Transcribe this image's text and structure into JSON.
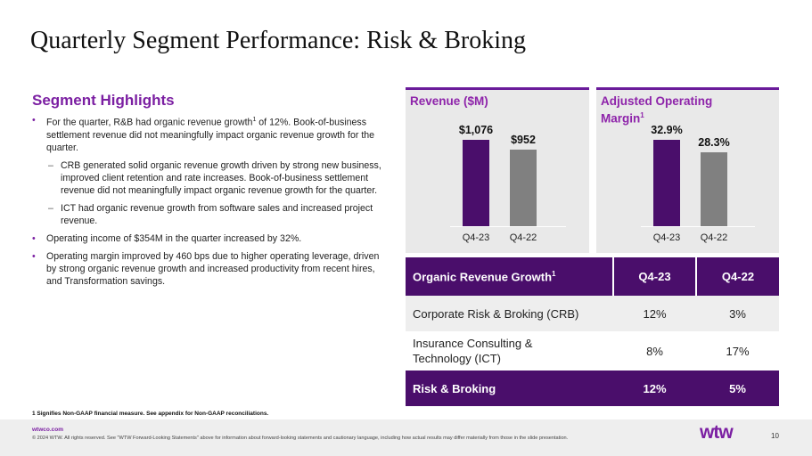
{
  "title": "Quarterly Segment Performance: Risk & Broking",
  "highlights": {
    "heading": "Segment Highlights",
    "bullet1": "For the quarter, R&B had organic revenue growth",
    "bullet1_sup": "1",
    "bullet1_rest": " of 12%. Book-of-business settlement revenue did not meaningfully impact organic revenue growth for the quarter.",
    "sub1": "CRB generated solid organic revenue growth driven by strong new business, improved client retention and rate increases. Book-of-business settlement revenue did not meaningfully impact organic revenue growth for the quarter.",
    "sub2": "ICT had organic revenue growth from software sales and increased project revenue.",
    "bullet2": "Operating income of $354M in the quarter increased by 32%.",
    "bullet3": "Operating margin improved by 460 bps due to higher operating leverage, driven by strong organic revenue growth and increased productivity from recent hires, and Transformation savings."
  },
  "chart_data": [
    {
      "type": "bar",
      "title": "Revenue ($M)",
      "categories": [
        "Q4-23",
        "Q4-22"
      ],
      "values": [
        1076,
        952
      ],
      "value_labels": [
        "$1,076",
        "$952"
      ],
      "colors": [
        "#4a0e6b",
        "#808080"
      ],
      "ylim": [
        0,
        1076
      ]
    },
    {
      "type": "bar",
      "title": "Adjusted Operating Margin",
      "title_line1": "Adjusted Operating",
      "title_line2": "Margin",
      "title_sup": "1",
      "categories": [
        "Q4-23",
        "Q4-22"
      ],
      "values": [
        32.9,
        28.3
      ],
      "value_labels": [
        "32.9%",
        "28.3%"
      ],
      "colors": [
        "#4a0e6b",
        "#808080"
      ],
      "ylim": [
        0,
        32.9
      ]
    }
  ],
  "table": {
    "header": {
      "label": "Organic Revenue Growth",
      "sup": "1",
      "col1": "Q4-23",
      "col2": "Q4-22"
    },
    "rows": [
      {
        "label": "Corporate Risk & Broking (CRB)",
        "q423": "12%",
        "q422": "3%"
      },
      {
        "label_line1": "Insurance Consulting &",
        "label_line2": "Technology (ICT)",
        "q423": "8%",
        "q422": "17%"
      }
    ],
    "total": {
      "label": "Risk & Broking",
      "q423": "12%",
      "q422": "5%"
    }
  },
  "footnote": "1 Signifies Non-GAAP financial measure. See appendix for Non-GAAP reconciliations.",
  "footer": {
    "site": "wtwco.com",
    "legal": "© 2024 WTW. All rights reserved. See \"WTW Forward-Looking Statements\" above for information about forward-looking statements and cautionary language, including how actual results may differ materially from those in the slide presentation.",
    "logo": "wtw",
    "page": "10"
  }
}
